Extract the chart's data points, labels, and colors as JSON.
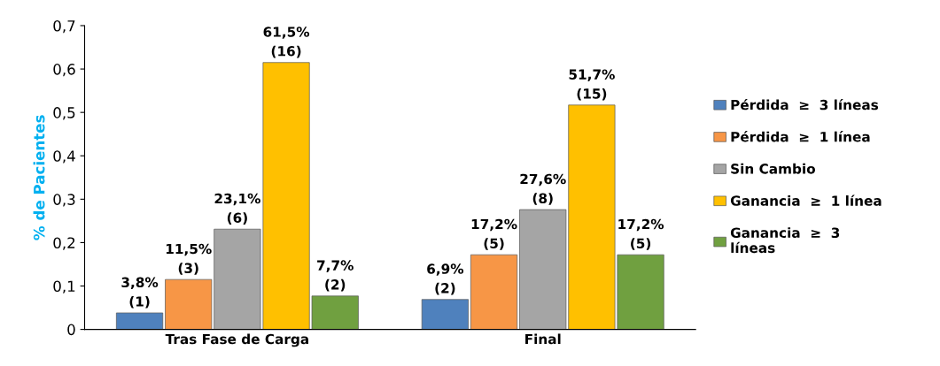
{
  "chart_data": {
    "type": "bar",
    "ylabel": "% de Pacientes",
    "categories": [
      "Tras Fase de Carga",
      "Final"
    ],
    "series": [
      {
        "name": "Pérdida  ≥  3 líneas",
        "color": "#4f81bd",
        "values": [
          0.038,
          0.069
        ],
        "value_labels": [
          "3,8%\n(1)",
          "6,9%\n(2)"
        ]
      },
      {
        "name": "Pérdida  ≥  1 línea",
        "color": "#f79646",
        "values": [
          0.115,
          0.172
        ],
        "value_labels": [
          "11,5%\n(3)",
          "17,2%\n(5)"
        ]
      },
      {
        "name": "Sin Cambio",
        "color": "#a5a5a5",
        "values": [
          0.231,
          0.276
        ],
        "value_labels": [
          "23,1%\n(6)",
          "27,6%\n(8)"
        ]
      },
      {
        "name": "Ganancia  ≥  1 línea",
        "color": "#ffc000",
        "values": [
          0.615,
          0.517
        ],
        "value_labels": [
          "61,5%\n(16)",
          "51,7%\n(15)"
        ]
      },
      {
        "name": "Ganancia  ≥  3\nlíneas",
        "color": "#70a040",
        "values": [
          0.077,
          0.172
        ],
        "value_labels": [
          "7,7%\n(2)",
          "17,2%\n(5)"
        ]
      }
    ],
    "ylim": [
      0,
      0.7
    ],
    "yticks": [
      0,
      {
        "value": 0.1,
        "label": "0,1"
      },
      {
        "value": 0.2,
        "label": "0,2"
      },
      {
        "value": 0.3,
        "label": "0,3"
      },
      {
        "value": 0.4,
        "label": "0,4"
      },
      {
        "value": 0.5,
        "label": "0,5"
      },
      {
        "value": 0.6,
        "label": "0,6"
      },
      {
        "value": 0.7,
        "label": "0,7"
      }
    ],
    "grid": false,
    "legend": "right"
  }
}
